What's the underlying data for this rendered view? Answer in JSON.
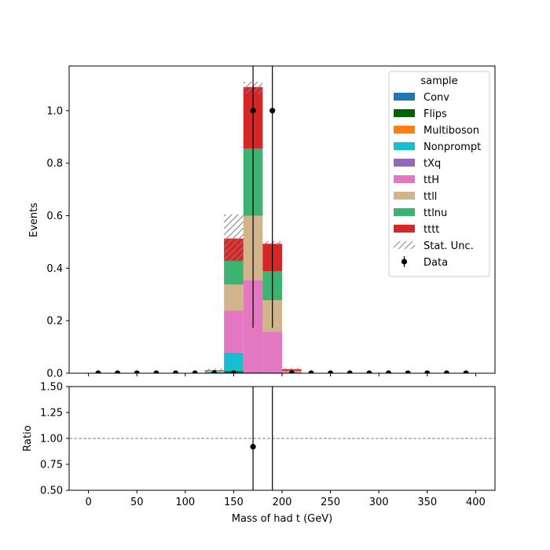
{
  "chart_data": {
    "type": "bar",
    "stacked": true,
    "xlabel": "Mass of had t (GeV)",
    "ylabel": "Events",
    "ratio_ylabel": "Ratio",
    "xlim": [
      -20,
      420
    ],
    "ylim": [
      0,
      1.17
    ],
    "ratio_ylim": [
      0.5,
      1.5
    ],
    "x_ticks": [
      0,
      50,
      100,
      150,
      200,
      250,
      300,
      350,
      400
    ],
    "y_ticks": [
      0.0,
      0.2,
      0.4,
      0.6,
      0.8,
      1.0
    ],
    "ratio_y_ticks": [
      0.5,
      0.75,
      1.0,
      1.25,
      1.5
    ],
    "bin_edges": [
      0,
      20,
      40,
      60,
      80,
      100,
      120,
      140,
      160,
      180,
      200,
      220,
      240,
      260,
      280,
      300,
      320,
      340,
      360,
      380,
      400
    ],
    "legend_title": "sample",
    "legend_position": "top-right",
    "series": [
      {
        "name": "Conv",
        "color": "#1f77b4",
        "bins": {
          "7": 0.003
        }
      },
      {
        "name": "Flips",
        "color": "#006400",
        "bins": {
          "7": 0.005
        }
      },
      {
        "name": "Multiboson",
        "color": "#ff7f0e",
        "bins": {}
      },
      {
        "name": "Nonprompt",
        "color": "#17becf",
        "bins": {
          "6": 0.003,
          "7": 0.07
        }
      },
      {
        "name": "tXq",
        "color": "#9467bd",
        "bins": {
          "8": 0.005,
          "9": 0.003
        }
      },
      {
        "name": "ttH",
        "color": "#e377c2",
        "bins": {
          "6": 0.003,
          "7": 0.16,
          "8": 0.35,
          "9": 0.155,
          "10": 0.005
        }
      },
      {
        "name": "ttll",
        "color": "#d2b48c",
        "bins": {
          "6": 0.004,
          "7": 0.1,
          "8": 0.245,
          "9": 0.12,
          "10": 0.003
        }
      },
      {
        "name": "ttlnu",
        "color": "#3cb371",
        "bins": {
          "7": 0.09,
          "8": 0.255,
          "9": 0.11
        }
      },
      {
        "name": "tttt",
        "color": "#d62728",
        "bins": {
          "6": 0.002,
          "7": 0.085,
          "8": 0.235,
          "9": 0.105,
          "10": 0.007
        }
      }
    ],
    "stat_unc": {
      "label": "Stat. Unc.",
      "bins": {
        "6": [
          0.005,
          0.017
        ],
        "7": [
          0.425,
          0.605
        ],
        "8": [
          1.065,
          1.11
        ],
        "9": [
          0.49,
          0.503
        ],
        "10": [
          0.01,
          0.02
        ]
      }
    },
    "data": {
      "label": "Data",
      "x": [
        10,
        30,
        50,
        70,
        90,
        110,
        130,
        150,
        170,
        190,
        210,
        230,
        250,
        270,
        290,
        310,
        330,
        350,
        370,
        390
      ],
      "y": [
        0,
        0,
        0,
        0,
        0,
        0,
        0,
        0,
        1.0,
        1.0,
        0,
        0,
        0,
        0,
        0,
        0,
        0,
        0,
        0,
        0
      ],
      "yerr_low": [
        0,
        0,
        0,
        0,
        0,
        0,
        0,
        0,
        0.827,
        0.827,
        0,
        0,
        0,
        0,
        0,
        0,
        0,
        0,
        0,
        0
      ],
      "yerr_high": [
        0,
        0,
        0,
        0,
        0,
        0,
        0,
        0,
        2.3,
        2.3,
        0,
        0,
        0,
        0,
        0,
        0,
        0,
        0,
        0,
        0
      ]
    },
    "ratio": {
      "reference_line": 1.0,
      "points": [
        {
          "x": 170,
          "y": 0.92
        }
      ],
      "error_bars": [
        {
          "x": 170,
          "low": 0,
          "high": 3
        },
        {
          "x": 190,
          "low": 0,
          "high": 3
        }
      ]
    }
  }
}
